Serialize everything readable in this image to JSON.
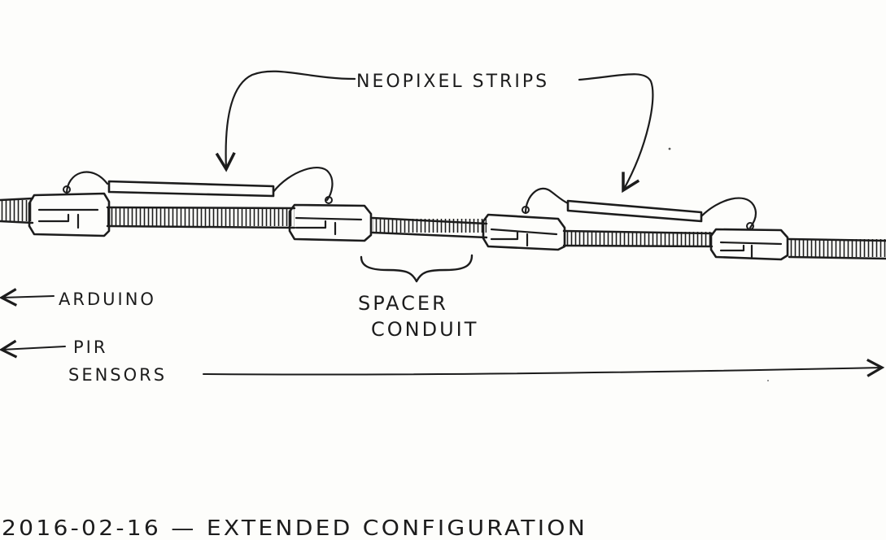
{
  "labels": {
    "neopixel": "NEOPIXEL STRIPS",
    "spacer_line1": "SPACER",
    "spacer_line2": "CONDUIT",
    "arduino": "ARDUINO",
    "pir_line1": "PIR",
    "pir_line2": "SENSORS",
    "caption": "2016-02-16 — EXTENDED CONFIGURATION"
  },
  "colors": {
    "ink": "#1c1c1c",
    "paper": "#fdfdfb"
  }
}
